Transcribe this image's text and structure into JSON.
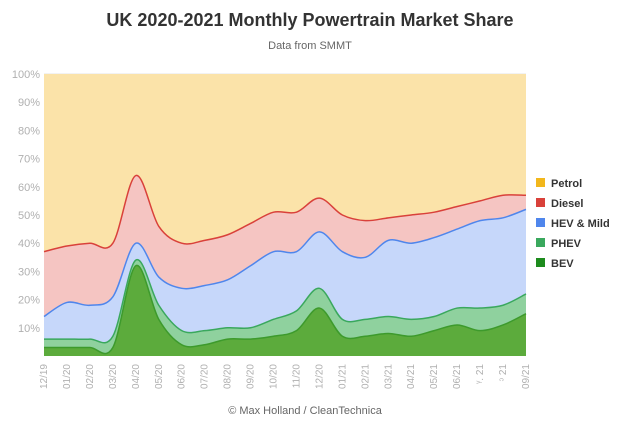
{
  "chart_data": {
    "type": "area",
    "stacked": true,
    "title": "UK 2020-2021 Monthly Powertrain Market Share",
    "subtitle": "Data from SMMT",
    "credit": "© Max Holland / CleanTechnica",
    "xlabel": "",
    "ylabel": "",
    "ylim": [
      0,
      100
    ],
    "y_ticks": [
      "10%",
      "20%",
      "30%",
      "40%",
      "50%",
      "60%",
      "70%",
      "80%",
      "90%",
      "100%"
    ],
    "grid": true,
    "legend_position": "right",
    "x": [
      "12/19",
      "01/20",
      "02/20",
      "03/20",
      "04/20",
      "05/20",
      "06/20",
      "07/20",
      "08/20",
      "09/20",
      "10/20",
      "11/20",
      "12/20",
      "01/21",
      "02/21",
      "03/21",
      "04/21",
      "05/21",
      "06/21",
      "07/21",
      "08/21",
      "09/21"
    ],
    "x_tick_labels": [
      "12/19",
      "01/20",
      "02/20",
      "03/20",
      "04/20",
      "05/20",
      "06/20",
      "07/20",
      "08/20",
      "09/20",
      "10/20",
      "11/20",
      "12/20",
      "01/21",
      "02/21",
      "03/21",
      "04/21",
      "05/21",
      "06/21",
      "ᵞ. 21",
      "ᵓ 21",
      "09/21"
    ],
    "series": [
      {
        "name": "BEV",
        "color": "#5cab3c",
        "values": [
          3,
          3,
          3,
          3,
          32,
          13,
          4,
          4,
          6,
          6,
          7,
          9,
          17,
          7,
          7,
          8,
          7,
          9,
          11,
          9,
          11,
          15
        ]
      },
      {
        "name": "PHEV",
        "color": "#8fd19e",
        "values": [
          3,
          3,
          3,
          4,
          2,
          5,
          5,
          5,
          4,
          4,
          6,
          7,
          7,
          6,
          6,
          6,
          6,
          5,
          6,
          8,
          7,
          7
        ]
      },
      {
        "name": "HEV & Mild",
        "color": "#c6d7fa",
        "values": [
          8,
          13,
          12,
          14,
          6,
          10,
          15,
          16,
          17,
          22,
          24,
          21,
          20,
          24,
          22,
          27,
          27,
          28,
          28,
          31,
          31,
          30
        ]
      },
      {
        "name": "Diesel",
        "color": "#f5c5c2",
        "values": [
          23,
          20,
          22,
          19,
          24,
          18,
          16,
          16,
          16,
          15,
          14,
          14,
          12,
          13,
          13,
          8,
          10,
          9,
          8,
          7,
          8,
          5
        ]
      },
      {
        "name": "Petrol",
        "color": "#fbe3a9",
        "values": [
          63,
          61,
          60,
          60,
          36,
          54,
          60,
          59,
          57,
          53,
          49,
          49,
          44,
          50,
          52,
          51,
          50,
          49,
          47,
          45,
          43,
          43
        ]
      }
    ]
  },
  "legend": {
    "items": [
      {
        "label": "Petrol",
        "color": "#f2b71c"
      },
      {
        "label": "Diesel",
        "color": "#d9413a"
      },
      {
        "label": "HEV & Mild",
        "color": "#4f86ec"
      },
      {
        "label": "PHEV",
        "color": "#3aa85d"
      },
      {
        "label": "BEV",
        "color": "#1d8b1d"
      }
    ]
  },
  "line_colors": {
    "BEV": "#3d9a2c",
    "PHEV": "#3aa85d",
    "HEV & Mild": "#4f86ec",
    "Diesel": "#d9413a",
    "Petrol": "#fbe3a9"
  }
}
